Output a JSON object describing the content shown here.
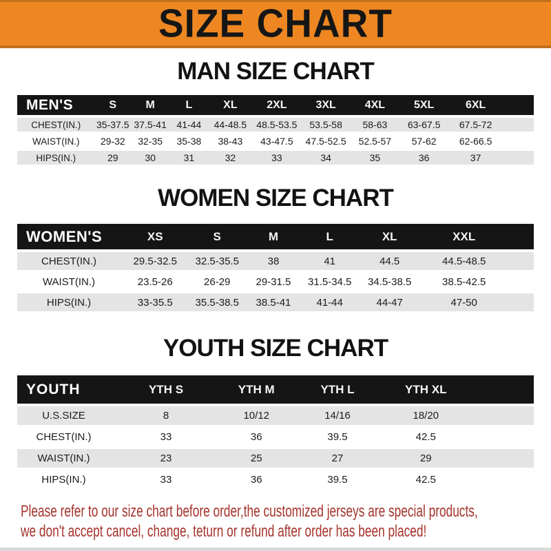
{
  "banner": {
    "title": "SIZE CHART"
  },
  "sections": [
    {
      "title": "MAN SIZE CHART",
      "table": {
        "header": [
          "MEN'S",
          "S",
          "M",
          "L",
          "XL",
          "2XL",
          "3XL",
          "4XL",
          "5XL",
          "6XL"
        ],
        "rows": [
          {
            "label": "CHEST(IN.)",
            "values": [
              "35-37.5",
              "37.5-41",
              "41-44",
              "44-48.5",
              "48.5-53.5",
              "53.5-58",
              "58-63",
              "63-67.5",
              "67.5-72"
            ]
          },
          {
            "label": "WAIST(IN.)",
            "values": [
              "29-32",
              "32-35",
              "35-38",
              "38-43",
              "43-47.5",
              "47.5-52.5",
              "52.5-57",
              "57-62",
              "62-66.5"
            ]
          },
          {
            "label": "HIPS(IN.)",
            "values": [
              "29",
              "30",
              "31",
              "32",
              "33",
              "34",
              "35",
              "36",
              "37"
            ]
          }
        ]
      }
    },
    {
      "title": "WOMEN SIZE CHART",
      "table": {
        "header": [
          "WOMEN'S",
          "XS",
          "S",
          "M",
          "L",
          "XL",
          "XXL"
        ],
        "rows": [
          {
            "label": "CHEST(IN.)",
            "values": [
              "29.5-32.5",
              "32.5-35.5",
              "38",
              "41",
              "44.5",
              "44.5-48.5"
            ]
          },
          {
            "label": "WAIST(IN.)",
            "values": [
              "23.5-26",
              "26-29",
              "29-31.5",
              "31.5-34.5",
              "34.5-38.5",
              "38.5-42.5"
            ]
          },
          {
            "label": "HIPS(IN.)",
            "values": [
              "33-35.5",
              "35.5-38.5",
              "38.5-41",
              "41-44",
              "44-47",
              "47-50"
            ]
          }
        ]
      }
    },
    {
      "title": "YOUTH SIZE CHART",
      "table": {
        "header": [
          "YOUTH",
          "YTH S",
          "YTH M",
          "YTH L",
          "YTH XL"
        ],
        "rows": [
          {
            "label": "U.S.SIZE",
            "values": [
              "8",
              "10/12",
              "14/16",
              "18/20"
            ]
          },
          {
            "label": "CHEST(IN.)",
            "values": [
              "33",
              "36",
              "39.5",
              "42.5"
            ]
          },
          {
            "label": "WAIST(IN.)",
            "values": [
              "23",
              "25",
              "27",
              "29"
            ]
          },
          {
            "label": "HIPS(IN.)",
            "values": [
              "33",
              "36",
              "39.5",
              "42.5"
            ]
          }
        ]
      }
    }
  ],
  "notice": {
    "line1": "Please refer to our size chart before order,the customized jerseys are special products,",
    "line2": "we don't accept cancel, change, teturn or refund after order has been placed!"
  },
  "colors": {
    "banner_bg": "#EE8722",
    "banner_border": "#C2701B",
    "bar_bg": "#151515",
    "stripe": "#E4E4E4",
    "notice_red": "#A5342C"
  }
}
